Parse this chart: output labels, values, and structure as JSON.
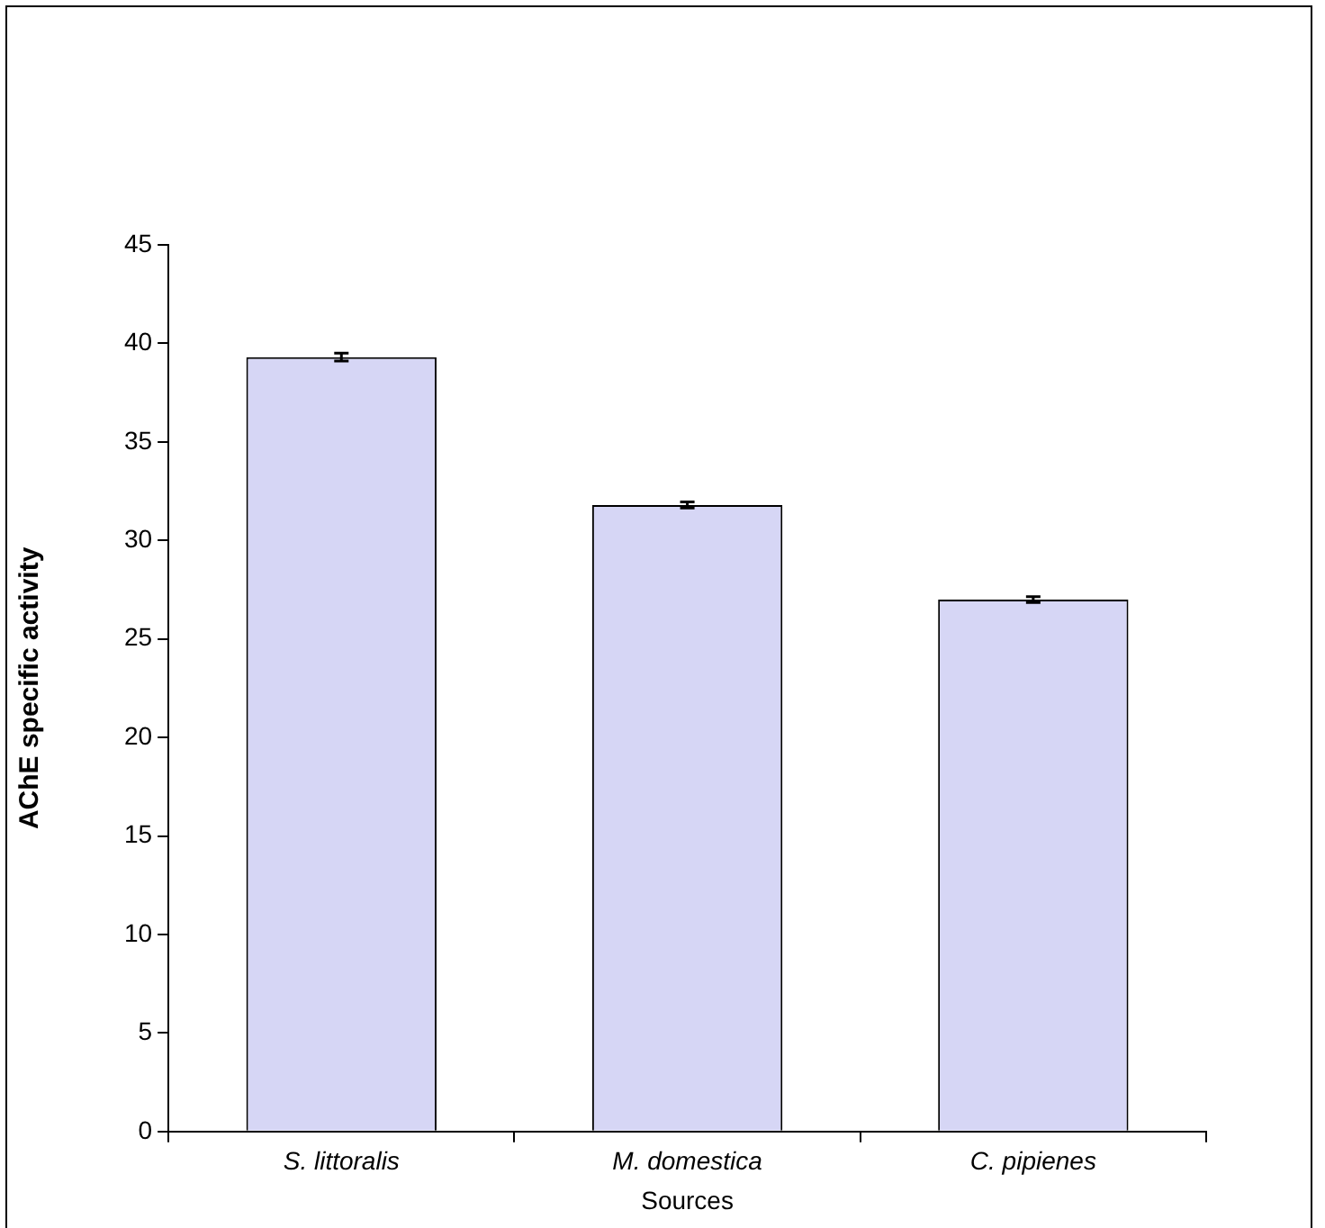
{
  "chart_data": {
    "type": "bar",
    "xlabel": "Sources",
    "ylabel": "AChE specific activity",
    "categories": [
      "S. littoralis",
      "M. domestica",
      "C. pipienes"
    ],
    "values": [
      39.3,
      31.8,
      27.0
    ],
    "errors": [
      0.2,
      0.15,
      0.15
    ],
    "color": "#d6d6f5",
    "ylim": [
      0,
      45
    ],
    "yticks": [
      0,
      5,
      10,
      15,
      20,
      25,
      30,
      35,
      40,
      45
    ],
    "grid": false,
    "legend": false
  }
}
